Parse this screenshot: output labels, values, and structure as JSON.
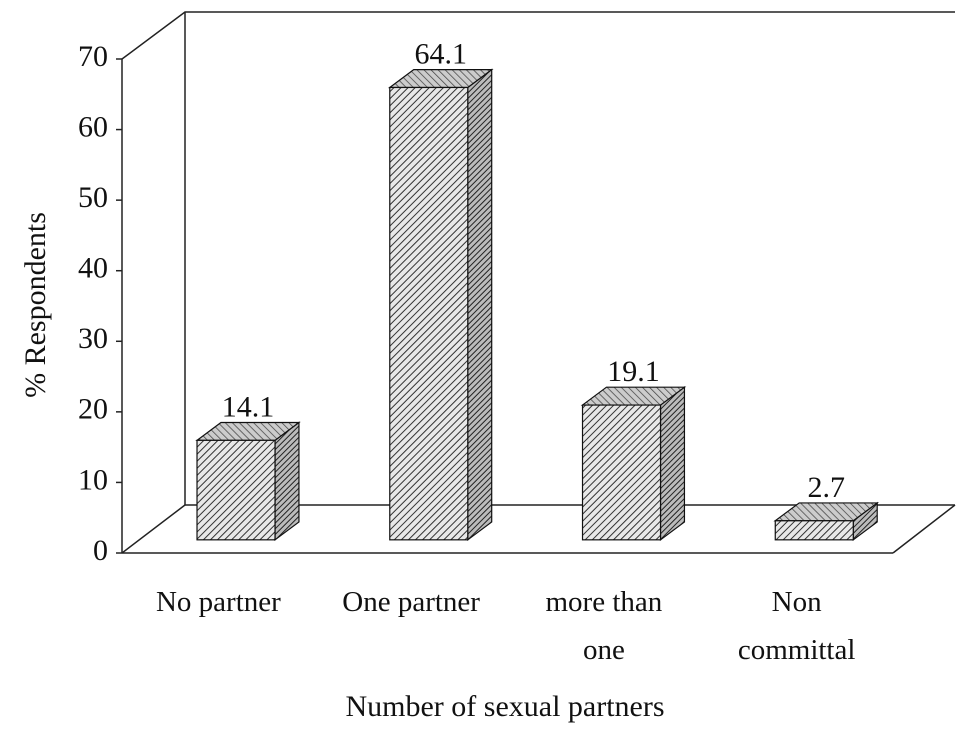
{
  "chart_data": {
    "type": "bar3d",
    "x_label": "Number of sexual partners",
    "y_label": "% Respondents",
    "categories": [
      "No partner",
      "One partner",
      "more than one",
      "Non committal"
    ],
    "values": [
      14.1,
      64.1,
      19.1,
      2.7
    ],
    "color": "#555555",
    "ylim": [
      0,
      70
    ],
    "yticks": [
      0,
      10,
      20,
      30,
      40,
      50,
      60,
      70
    ],
    "grid": false
  }
}
